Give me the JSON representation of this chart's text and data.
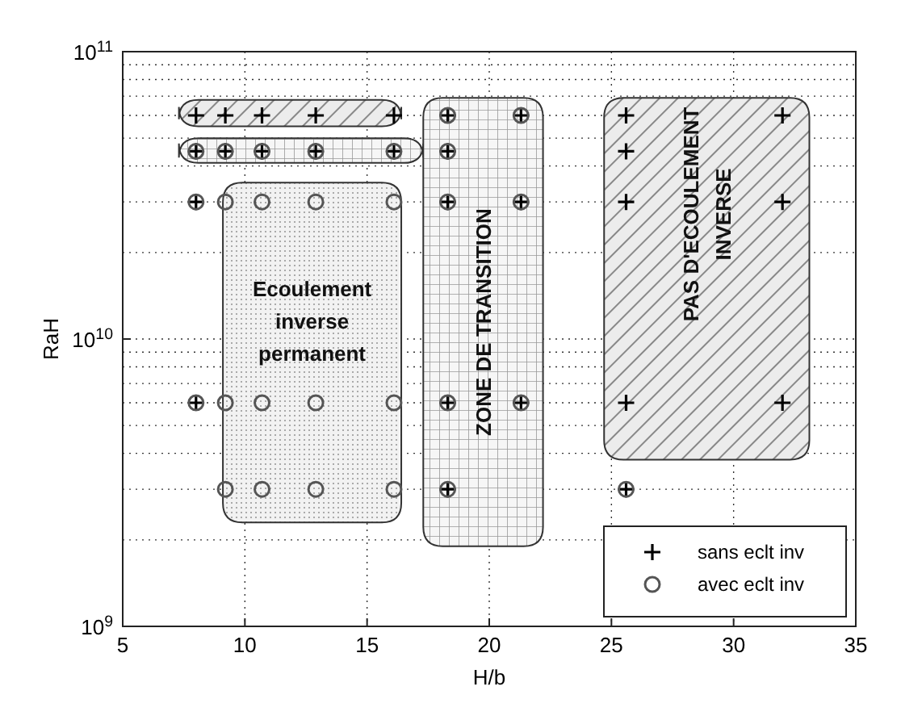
{
  "chart_data": {
    "type": "scatter",
    "xlabel": "H/b",
    "ylabel": "RaH",
    "log": "y",
    "grid": true,
    "legend": "bottom right",
    "xlim": [
      5,
      35
    ],
    "xticks": [
      5,
      10,
      15,
      20,
      25,
      30,
      35
    ],
    "ylim": [
      1000000000,
      100000000000
    ],
    "yticks": [
      {
        "value": 1000000000,
        "label": "10$^{9}$"
      },
      {
        "value": 10000000000,
        "label": "10$^{10}$"
      },
      {
        "value": 100000000000,
        "label": "10$^{11}$"
      }
    ],
    "series": [
      {
        "name": "sans eclt inv",
        "color": "#000000",
        "marker": "cross",
        "x": [
          8,
          9.2,
          10.7,
          12.9,
          16.1,
          8,
          9.2,
          10.7,
          12.9,
          16.1,
          18.3,
          18.3,
          21.3,
          8,
          18.3,
          21.3,
          8,
          18.3,
          21.3,
          18.3,
          25.6,
          25.6,
          25.6,
          25.6,
          25.6,
          32,
          32,
          32
        ],
        "values": [
          60000000000.0,
          60000000000.0,
          60000000000.0,
          60000000000.0,
          60000000000.0,
          45000000000.0,
          45000000000.0,
          45000000000.0,
          45000000000.0,
          45000000000.0,
          45000000000.0,
          60000000000.0,
          60000000000.0,
          30000000000.0,
          30000000000.0,
          30000000000.0,
          6000000000.0,
          6000000000.0,
          6000000000.0,
          3000000000.0,
          3000000000.0,
          60000000000.0,
          45000000000.0,
          30000000000.0,
          6000000000.0,
          60000000000.0,
          30000000000.0,
          6000000000.0
        ]
      },
      {
        "name": "avec eclt inv",
        "color": "#555555",
        "marker": "circle",
        "x": [
          8,
          9.2,
          10.7,
          12.9,
          16.1,
          18.3,
          18.3,
          21.3,
          8,
          9.2,
          10.7,
          12.9,
          16.1,
          18.3,
          21.3,
          8,
          9.2,
          10.7,
          12.9,
          16.1,
          18.3,
          21.3,
          9.2,
          10.7,
          12.9,
          16.1,
          18.3,
          25.6
        ],
        "values": [
          45000000000.0,
          45000000000.0,
          45000000000.0,
          45000000000.0,
          45000000000.0,
          45000000000.0,
          60000000000.0,
          60000000000.0,
          30000000000.0,
          30000000000.0,
          30000000000.0,
          30000000000.0,
          30000000000.0,
          30000000000.0,
          30000000000.0,
          6000000000.0,
          6000000000.0,
          6000000000.0,
          6000000000.0,
          6000000000.0,
          6000000000.0,
          6000000000.0,
          3000000000.0,
          3000000000.0,
          3000000000.0,
          3000000000.0,
          3000000000.0,
          3000000000.0
        ]
      }
    ],
    "annotations": [
      "Ecoulement\ninverse\npermanent",
      "ZONE DE TRANSITION",
      "PAS D'ECOULEMENT\nINVERSE"
    ]
  }
}
